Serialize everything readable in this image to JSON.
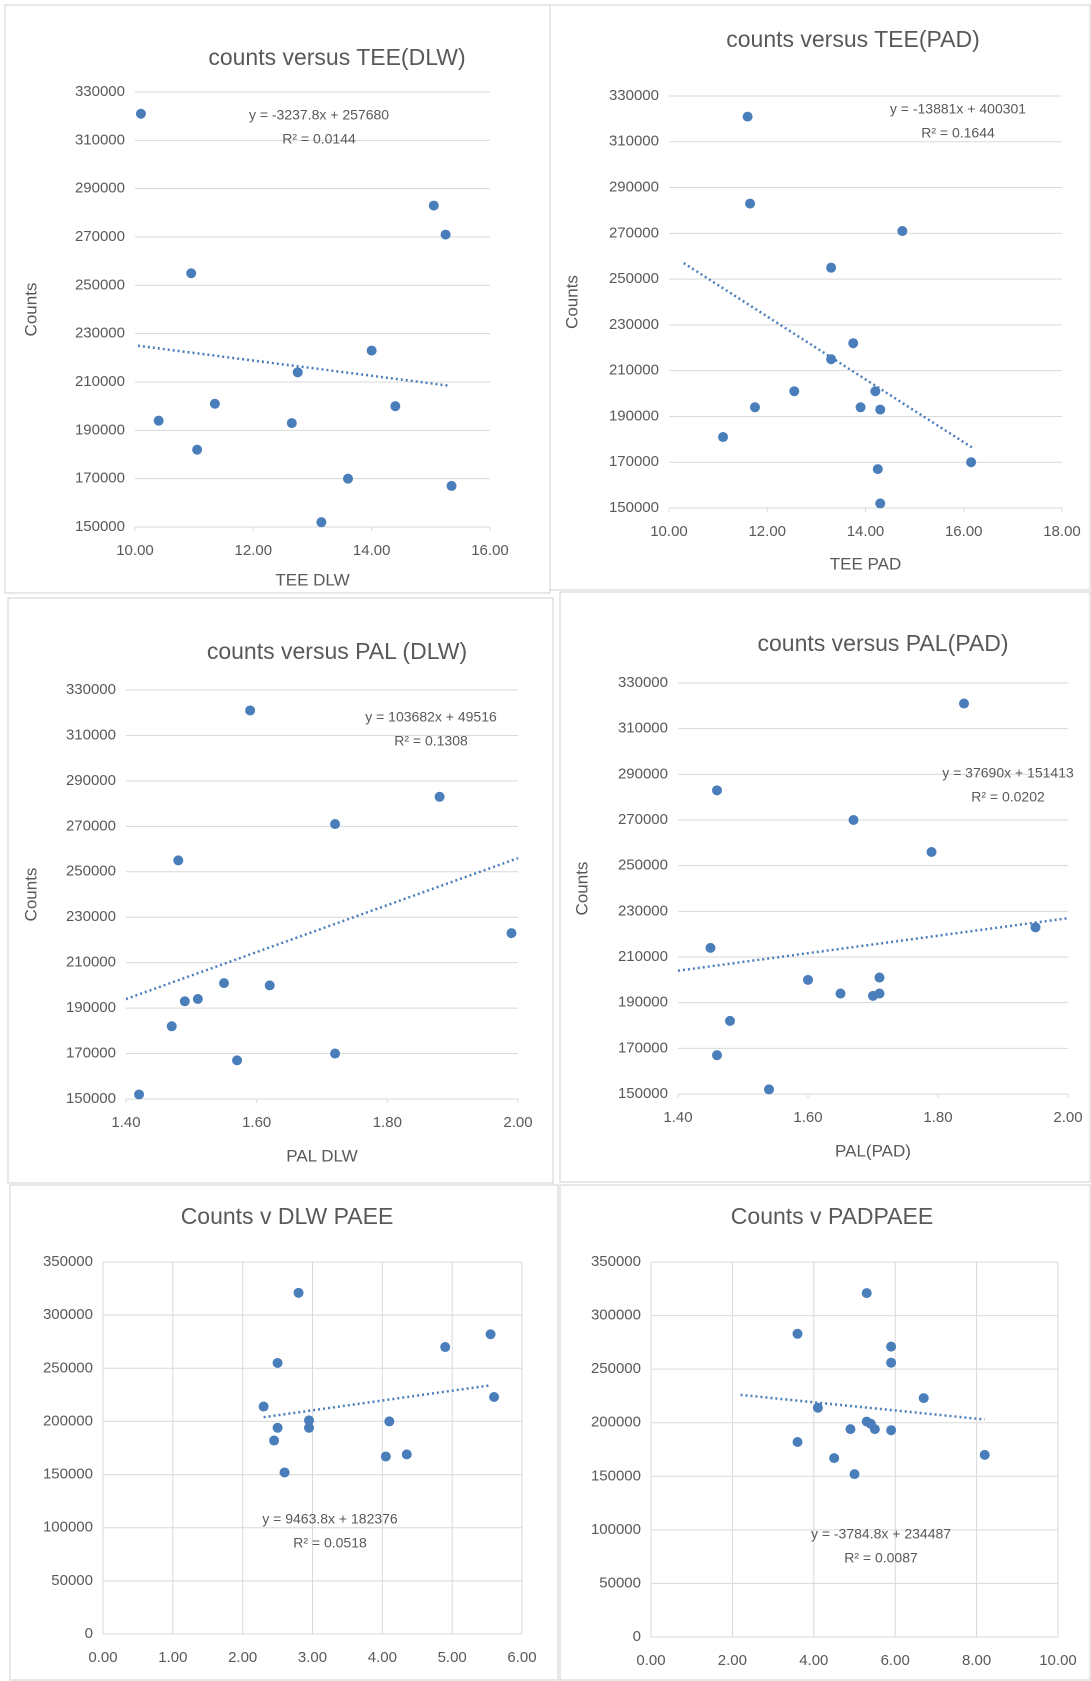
{
  "chart_data": [
    {
      "type": "scatter",
      "title": "counts versus  TEE(DLW)",
      "x_label": "TEE DLW",
      "y_label": "Counts",
      "color": "#4a7ebb",
      "grid": "horizontal",
      "x": [
        10.1,
        10.4,
        10.95,
        11.05,
        11.35,
        12.65,
        12.75,
        13.15,
        13.6,
        14.0,
        14.4,
        15.05,
        15.25,
        15.35
      ],
      "values": [
        321000,
        194000,
        255000,
        182000,
        201000,
        193000,
        214000,
        152000,
        170000,
        223000,
        200000,
        283000,
        271000,
        167000
      ],
      "trendline": {
        "x": [
          10.05,
          15.3
        ],
        "y": [
          225000,
          208500
        ]
      },
      "annotations": [
        "y = -3237.8x + 257680",
        "R² = 0.0144"
      ],
      "xlim": [
        10,
        16
      ],
      "xticks": [
        {
          "value": 10,
          "label": "10.00"
        },
        {
          "value": 12,
          "label": "12.00"
        },
        {
          "value": 14,
          "label": "14.00"
        },
        {
          "value": 16,
          "label": "16.00"
        }
      ],
      "ylim": [
        150000,
        330000
      ],
      "yticks": [
        150000,
        170000,
        190000,
        210000,
        230000,
        250000,
        270000,
        290000,
        310000,
        330000
      ]
    },
    {
      "type": "scatter",
      "title": "counts versus  TEE(PAD)",
      "x_label": "TEE PAD",
      "y_label": "Counts",
      "color": "#4a7ebb",
      "grid": "horizontal",
      "x": [
        11.6,
        11.65,
        14.75,
        13.3,
        13.75,
        13.3,
        14.2,
        11.75,
        12.55,
        13.9,
        14.3,
        11.1,
        14.25,
        16.15,
        14.3
      ],
      "values": [
        321000,
        283000,
        271000,
        255000,
        222000,
        215000,
        201000,
        194000,
        201000,
        194000,
        193000,
        181000,
        167000,
        170000,
        152000
      ],
      "trendline": {
        "x": [
          10.3,
          16.2
        ],
        "y": [
          257000,
          176000
        ]
      },
      "annotations": [
        "y = -13881x + 400301",
        "R² = 0.1644"
      ],
      "xlim": [
        10,
        18
      ],
      "xticks": [
        {
          "value": 10,
          "label": "10.00"
        },
        {
          "value": 12,
          "label": "12.00"
        },
        {
          "value": 14,
          "label": "14.00"
        },
        {
          "value": 16,
          "label": "16.00"
        },
        {
          "value": 18,
          "label": "18.00"
        }
      ],
      "ylim": [
        150000,
        330000
      ],
      "yticks": [
        150000,
        170000,
        190000,
        210000,
        230000,
        250000,
        270000,
        290000,
        310000,
        330000
      ]
    },
    {
      "type": "scatter",
      "title": "counts versus  PAL (DLW)",
      "x_label": "PAL DLW",
      "y_label": "Counts",
      "color": "#4a7ebb",
      "grid": "horizontal",
      "x": [
        1.59,
        1.88,
        1.72,
        1.48,
        1.99,
        1.55,
        1.62,
        1.49,
        1.51,
        1.47,
        1.57,
        1.72,
        1.42
      ],
      "values": [
        321000,
        283000,
        271000,
        255000,
        223000,
        201000,
        200000,
        193000,
        194000,
        182000,
        167000,
        170000,
        152000
      ],
      "trendline": {
        "x": [
          1.4,
          2.0
        ],
        "y": [
          194000,
          256000
        ]
      },
      "annotations": [
        "y = 103682x  + 49516",
        "R² = 0.1308"
      ],
      "xlim": [
        1.4,
        2.0
      ],
      "xticks": [
        {
          "value": 1.4,
          "label": "1.40"
        },
        {
          "value": 1.6,
          "label": "1.60"
        },
        {
          "value": 1.8,
          "label": "1.80"
        },
        {
          "value": 2.0,
          "label": "2.00"
        }
      ],
      "ylim": [
        150000,
        330000
      ],
      "yticks": [
        150000,
        170000,
        190000,
        210000,
        230000,
        250000,
        270000,
        290000,
        310000,
        330000
      ]
    },
    {
      "type": "scatter",
      "title": "counts versus PAL(PAD)",
      "x_label": "PAL(PAD)",
      "y_label": "Counts",
      "color": "#4a7ebb",
      "grid": "horizontal",
      "x": [
        1.84,
        1.46,
        1.67,
        1.79,
        1.95,
        1.45,
        1.6,
        1.65,
        1.71,
        1.7,
        1.71,
        1.48,
        1.46,
        1.54
      ],
      "values": [
        321000,
        283000,
        270000,
        256000,
        223000,
        214000,
        200000,
        194000,
        201000,
        193000,
        194000,
        182000,
        167000,
        152000
      ],
      "trendline": {
        "x": [
          1.4,
          2.0
        ],
        "y": [
          204000,
          227000
        ]
      },
      "annotations": [
        "y = 37690x  + 151413",
        "R² = 0.0202"
      ],
      "xlim": [
        1.4,
        2.0
      ],
      "xticks": [
        {
          "value": 1.4,
          "label": "1.40"
        },
        {
          "value": 1.6,
          "label": "1.60"
        },
        {
          "value": 1.8,
          "label": "1.80"
        },
        {
          "value": 2.0,
          "label": "2.00"
        }
      ],
      "ylim": [
        150000,
        330000
      ],
      "yticks": [
        150000,
        170000,
        190000,
        210000,
        230000,
        250000,
        270000,
        290000,
        310000,
        330000
      ]
    },
    {
      "type": "scatter",
      "title": "Counts v DLW PAEE",
      "color": "#4a7ebb",
      "grid": "both",
      "x": [
        2.8,
        5.55,
        4.9,
        2.5,
        5.6,
        2.3,
        2.95,
        4.1,
        2.5,
        2.95,
        2.45,
        4.05,
        4.35,
        2.6
      ],
      "values": [
        321000,
        282000,
        270000,
        255000,
        223000,
        214000,
        201000,
        200000,
        194000,
        194000,
        182000,
        167000,
        169000,
        152000
      ],
      "trendline": {
        "x": [
          2.3,
          5.55
        ],
        "y": [
          204000,
          234000
        ]
      },
      "annotations": [
        "y = 9463.8x + 182376",
        "R² = 0.0518"
      ],
      "xlim": [
        0,
        6
      ],
      "xticks": [
        {
          "value": 0,
          "label": "0.00"
        },
        {
          "value": 1,
          "label": "1.00"
        },
        {
          "value": 2,
          "label": "2.00"
        },
        {
          "value": 3,
          "label": "3.00"
        },
        {
          "value": 4,
          "label": "4.00"
        },
        {
          "value": 5,
          "label": "5.00"
        },
        {
          "value": 6,
          "label": "6.00"
        }
      ],
      "ylim": [
        0,
        350000
      ],
      "yticks": [
        0,
        50000,
        100000,
        150000,
        200000,
        250000,
        300000,
        350000
      ]
    },
    {
      "type": "scatter",
      "title": "Counts v PADPAEE",
      "color": "#4a7ebb",
      "grid": "both",
      "x": [
        5.3,
        3.6,
        5.9,
        5.9,
        6.7,
        4.1,
        5.3,
        5.4,
        4.9,
        5.5,
        5.9,
        3.6,
        4.5,
        8.2,
        5.0
      ],
      "values": [
        321000,
        283000,
        271000,
        256000,
        223000,
        214000,
        201000,
        199000,
        194000,
        194000,
        193000,
        182000,
        167000,
        170000,
        152000
      ],
      "trendline": {
        "x": [
          2.2,
          8.2
        ],
        "y": [
          226000,
          203000
        ]
      },
      "annotations": [
        "y = -3784.8x + 234487",
        "R² = 0.0087"
      ],
      "xlim": [
        0,
        10
      ],
      "xticks": [
        {
          "value": 0,
          "label": "0.00"
        },
        {
          "value": 2,
          "label": "2.00"
        },
        {
          "value": 4,
          "label": "4.00"
        },
        {
          "value": 6,
          "label": "6.00"
        },
        {
          "value": 8,
          "label": "8.00"
        },
        {
          "value": 10,
          "label": "10.00"
        }
      ],
      "ylim": [
        0,
        350000
      ],
      "yticks": [
        0,
        50000,
        100000,
        150000,
        200000,
        250000,
        300000,
        350000
      ]
    }
  ]
}
